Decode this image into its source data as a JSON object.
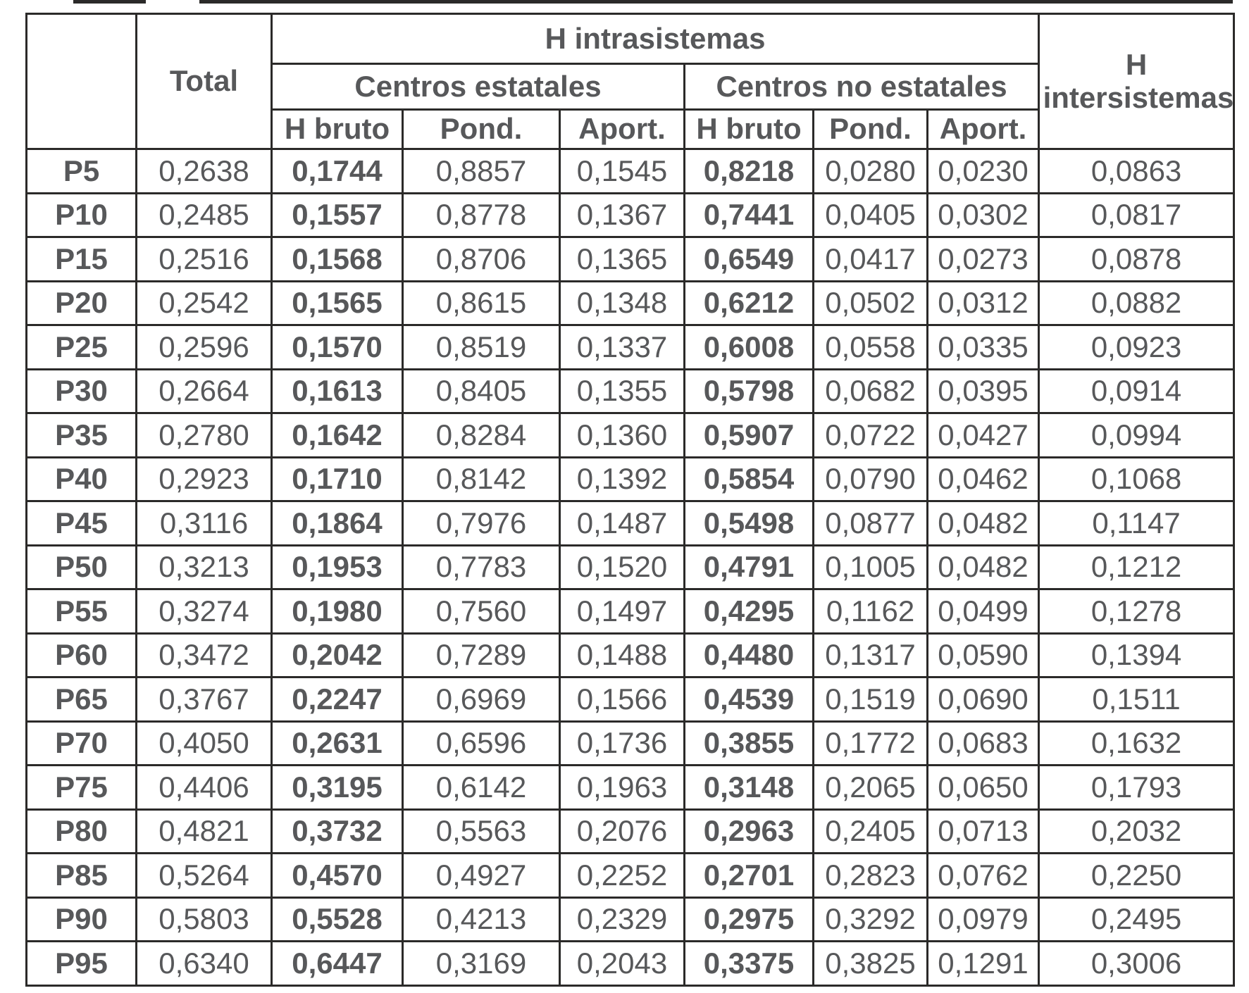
{
  "colors": {
    "text": "#57585A",
    "border": "#2B2A29",
    "background": "#FFFFFF"
  },
  "chart_data": {
    "type": "table",
    "header": {
      "corner": "",
      "total": "Total",
      "h_intrasistemas": "H intrasistemas",
      "h_intersistemas": "H intersistemas",
      "centros_estatales": "Centros estatales",
      "centros_no_estatales": "Centros no estatales",
      "sub_estatales": [
        "H bruto",
        "Pond.",
        "Aport."
      ],
      "sub_no_estatales": [
        "H bruto",
        "Pond.",
        "Aport."
      ]
    },
    "row_labels": [
      "P5",
      "P10",
      "P15",
      "P20",
      "P25",
      "P30",
      "P35",
      "P40",
      "P45",
      "P50",
      "P55",
      "P60",
      "P65",
      "P70",
      "P75",
      "P80",
      "P85",
      "P90",
      "P95"
    ],
    "columns": [
      "Total",
      "Centros estatales H bruto",
      "Centros estatales Pond.",
      "Centros estatales Aport.",
      "Centros no estatales H bruto",
      "Centros no estatales Pond.",
      "Centros no estatales Aport.",
      "H intersistemas"
    ],
    "rows": [
      [
        "0,2638",
        "0,1744",
        "0,8857",
        "0,1545",
        "0,8218",
        "0,0280",
        "0,0230",
        "0,0863"
      ],
      [
        "0,2485",
        "0,1557",
        "0,8778",
        "0,1367",
        "0,7441",
        "0,0405",
        "0,0302",
        "0,0817"
      ],
      [
        "0,2516",
        "0,1568",
        "0,8706",
        "0,1365",
        "0,6549",
        "0,0417",
        "0,0273",
        "0,0878"
      ],
      [
        "0,2542",
        "0,1565",
        "0,8615",
        "0,1348",
        "0,6212",
        "0,0502",
        "0,0312",
        "0,0882"
      ],
      [
        "0,2596",
        "0,1570",
        "0,8519",
        "0,1337",
        "0,6008",
        "0,0558",
        "0,0335",
        "0,0923"
      ],
      [
        "0,2664",
        "0,1613",
        "0,8405",
        "0,1355",
        "0,5798",
        "0,0682",
        "0,0395",
        "0,0914"
      ],
      [
        "0,2780",
        "0,1642",
        "0,8284",
        "0,1360",
        "0,5907",
        "0,0722",
        "0,0427",
        "0,0994"
      ],
      [
        "0,2923",
        "0,1710",
        "0,8142",
        "0,1392",
        "0,5854",
        "0,0790",
        "0,0462",
        "0,1068"
      ],
      [
        "0,3116",
        "0,1864",
        "0,7976",
        "0,1487",
        "0,5498",
        "0,0877",
        "0,0482",
        "0,1147"
      ],
      [
        "0,3213",
        "0,1953",
        "0,7783",
        "0,1520",
        "0,4791",
        "0,1005",
        "0,0482",
        "0,1212"
      ],
      [
        "0,3274",
        "0,1980",
        "0,7560",
        "0,1497",
        "0,4295",
        "0,1162",
        "0,0499",
        "0,1278"
      ],
      [
        "0,3472",
        "0,2042",
        "0,7289",
        "0,1488",
        "0,4480",
        "0,1317",
        "0,0590",
        "0,1394"
      ],
      [
        "0,3767",
        "0,2247",
        "0,6969",
        "0,1566",
        "0,4539",
        "0,1519",
        "0,0690",
        "0,1511"
      ],
      [
        "0,4050",
        "0,2631",
        "0,6596",
        "0,1736",
        "0,3855",
        "0,1772",
        "0,0683",
        "0,1632"
      ],
      [
        "0,4406",
        "0,3195",
        "0,6142",
        "0,1963",
        "0,3148",
        "0,2065",
        "0,0650",
        "0,1793"
      ],
      [
        "0,4821",
        "0,3732",
        "0,5563",
        "0,2076",
        "0,2963",
        "0,2405",
        "0,0713",
        "0,2032"
      ],
      [
        "0,5264",
        "0,4570",
        "0,4927",
        "0,2252",
        "0,2701",
        "0,2823",
        "0,0762",
        "0,2250"
      ],
      [
        "0,5803",
        "0,5528",
        "0,4213",
        "0,2329",
        "0,2975",
        "0,3292",
        "0,0979",
        "0,2495"
      ],
      [
        "0,6340",
        "0,6447",
        "0,3169",
        "0,2043",
        "0,3375",
        "0,3825",
        "0,1291",
        "0,3006"
      ]
    ]
  }
}
